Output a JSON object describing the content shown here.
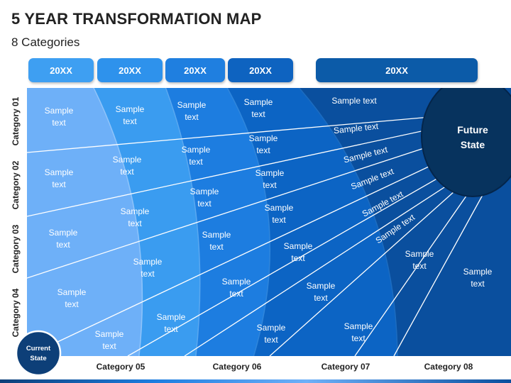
{
  "title": "5 YEAR TRANSFORMATION MAP",
  "subtitle": "8 Categories",
  "years": [
    "20XX",
    "20XX",
    "20XX",
    "20XX",
    "20XX"
  ],
  "left_categories": [
    "Category 01",
    "Category 02",
    "Category 03",
    "Category 04"
  ],
  "bottom_categories": [
    "Category 05",
    "Category 06",
    "Category 07",
    "Category 08"
  ],
  "sample_text": "Sample text",
  "future_state": [
    "Future",
    "State"
  ],
  "current_state": [
    "Current",
    "State"
  ],
  "colors": {
    "band1": "#6eb0f8",
    "band2": "#3a9cf0",
    "band3": "#1d7de0",
    "band4": "#0c64c4",
    "band5": "#0a4f9e",
    "future_oval": "#07335e",
    "current_circle": "#0d3f78",
    "year_box_fill": [
      "#3e9ff2",
      "#2e92ec",
      "#1f7fe0",
      "#0e63c0",
      "#0c5ba8"
    ]
  }
}
